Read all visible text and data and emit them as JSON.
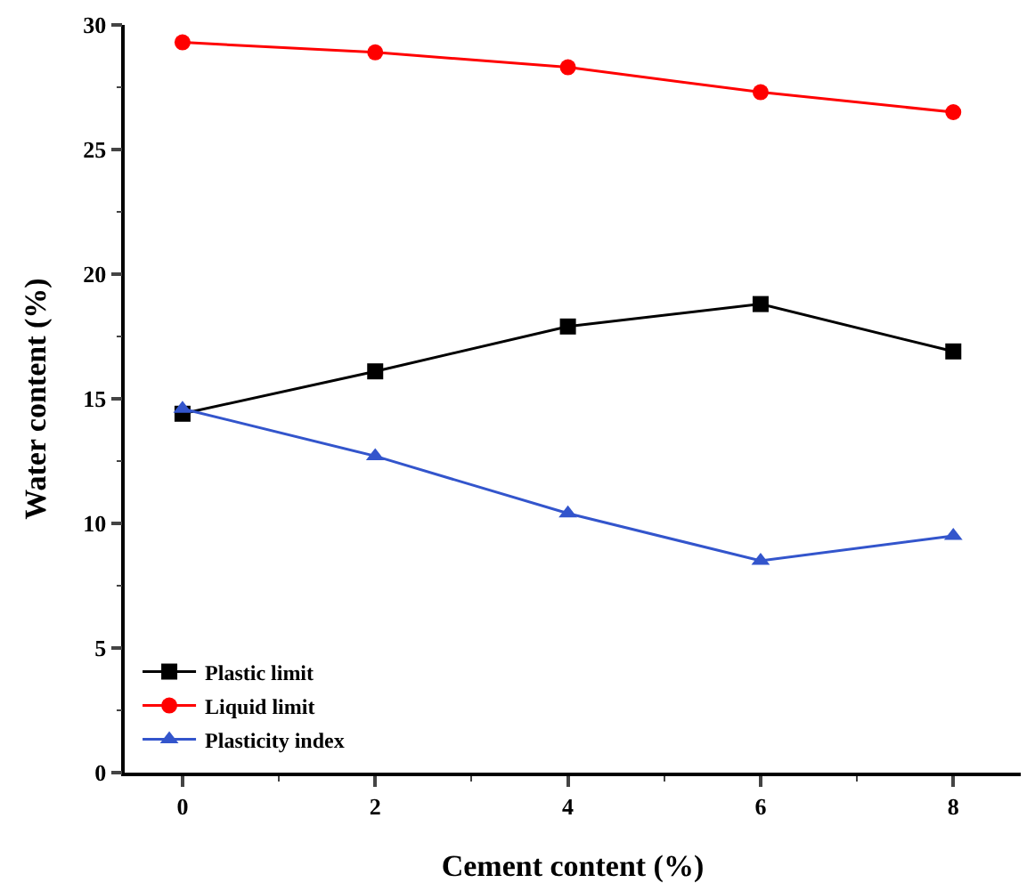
{
  "chart_data": {
    "type": "line",
    "xlabel": "Cement content (%)",
    "ylabel": "Water content (%)",
    "x": [
      0,
      2,
      4,
      6,
      8
    ],
    "series": [
      {
        "name": "Plastic limit",
        "color": "#000000",
        "marker": "square",
        "values": [
          14.4,
          16.1,
          17.9,
          18.8,
          16.9
        ]
      },
      {
        "name": "Liquid limit",
        "color": "#ff0000",
        "marker": "circle",
        "values": [
          29.3,
          28.9,
          28.3,
          27.3,
          26.5
        ]
      },
      {
        "name": "Plasticity index",
        "color": "#3355cc",
        "marker": "triangle",
        "values": [
          14.6,
          12.7,
          10.4,
          8.5,
          9.5
        ]
      }
    ],
    "xlim": [
      -0.6,
      8.7
    ],
    "xticks": [
      0,
      2,
      4,
      6,
      8
    ],
    "ylim": [
      0,
      30
    ],
    "yticks": [
      0,
      5,
      10,
      15,
      20,
      25,
      30
    ],
    "grid": false,
    "legend": "bottom left",
    "line_style": "solid"
  }
}
